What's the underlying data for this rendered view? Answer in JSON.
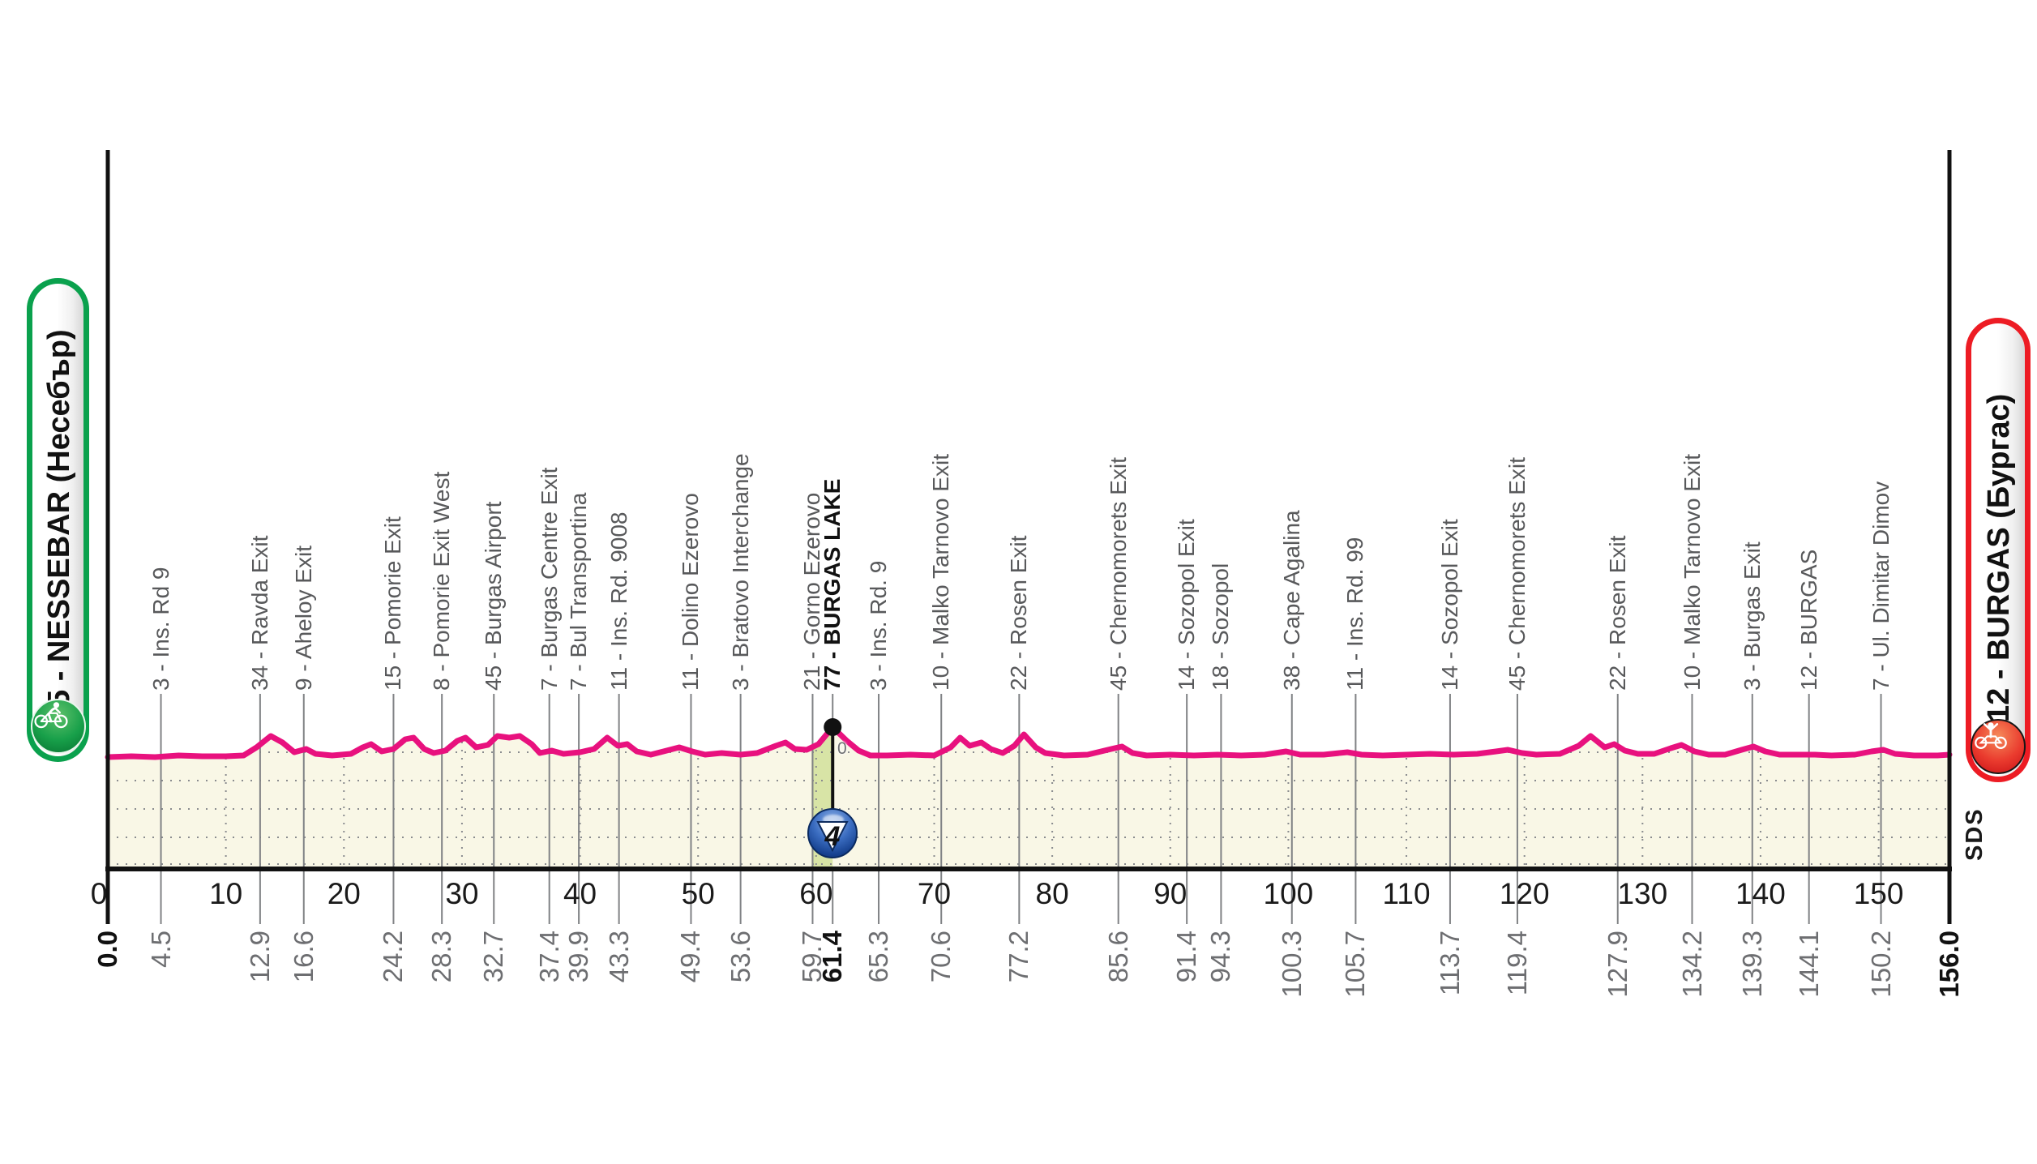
{
  "stage": {
    "start_label": "5 - NESSEBAR (Несебър)",
    "finish_label": "12 - BURGAS (Бургас)"
  },
  "sponsor_logo": "SDS",
  "sprint": {
    "ball_label": "4",
    "km": "61.4",
    "elevation_label": "0"
  },
  "colors": {
    "profile_pink": "#e8117e",
    "band_cream": "#f9f7e6",
    "green_band": "#d8e4a6",
    "grid_gray": "#8a8c8f",
    "waypoint_line": "#808285",
    "label_gray": "#58595b",
    "km_gray": "#6d6e71",
    "start_green": "#0aa14d",
    "finish_red": "#ed1c24",
    "black": "#111111"
  },
  "chart_data": {
    "type": "line",
    "xlabel_unit": "km",
    "x_max": 156,
    "x_ticks": [
      0,
      10,
      20,
      30,
      40,
      50,
      60,
      70,
      80,
      90,
      100,
      110,
      120,
      130,
      140,
      150
    ],
    "endpoints": [
      {
        "km": "0.0",
        "bold": true
      },
      {
        "km": "156.0",
        "bold": true
      }
    ],
    "sprint_km": 61.4,
    "waypoints": [
      {
        "km": "4.5",
        "label": "3 - Ins. Rd 9",
        "bold": false
      },
      {
        "km": "12.9",
        "label": "34 - Ravda Exit",
        "bold": false
      },
      {
        "km": "16.6",
        "label": "9 - Aheloy Exit",
        "bold": false
      },
      {
        "km": "24.2",
        "label": "15 - Pomorie Exit",
        "bold": false
      },
      {
        "km": "28.3",
        "label": "8 - Pomorie Exit West",
        "bold": false
      },
      {
        "km": "32.7",
        "label": "45 - Burgas Airport",
        "bold": false
      },
      {
        "km": "37.4",
        "label": "7 - Burgas Centre Exit",
        "bold": false
      },
      {
        "km": "39.9",
        "label": "7 - Bul Transportina",
        "bold": false
      },
      {
        "km": "43.3",
        "label": "11 - Ins. Rd. 9008",
        "bold": false
      },
      {
        "km": "49.4",
        "label": "11 - Dolino Ezerovo",
        "bold": false
      },
      {
        "km": "53.6",
        "label": "3 - Bratovo Interchange",
        "bold": false
      },
      {
        "km": "59.7",
        "label": "21 - Gorno Ezerovo",
        "bold": false
      },
      {
        "km": "61.4",
        "label": "77 - BURGAS LAKE",
        "bold": true
      },
      {
        "km": "65.3",
        "label": "3 - Ins. Rd. 9",
        "bold": false
      },
      {
        "km": "70.6",
        "label": "10 - Malko Tarnovo Exit",
        "bold": false
      },
      {
        "km": "77.2",
        "label": "22 - Rosen Exit",
        "bold": false
      },
      {
        "km": "85.6",
        "label": "45 - Chernomorets Exit",
        "bold": false
      },
      {
        "km": "91.4",
        "label": "14 - Sozopol Exit",
        "bold": false
      },
      {
        "km": "94.3",
        "label": "18 - Sozopol",
        "bold": false
      },
      {
        "km": "100.3",
        "label": "38 - Cape Agalina",
        "bold": false
      },
      {
        "km": "105.7",
        "label": "11 - Ins. Rd. 99",
        "bold": false
      },
      {
        "km": "113.7",
        "label": "14 - Sozopol Exit",
        "bold": false
      },
      {
        "km": "119.4",
        "label": "45 - Chernomorets Exit",
        "bold": false
      },
      {
        "km": "127.9",
        "label": "22 - Rosen Exit",
        "bold": false
      },
      {
        "km": "134.2",
        "label": "10 - Malko Tarnovo Exit",
        "bold": false
      },
      {
        "km": "139.3",
        "label": "3 - Burgas Exit",
        "bold": false
      },
      {
        "km": "144.1",
        "label": "12 - BURGAS",
        "bold": false
      },
      {
        "km": "150.2",
        "label": "7 - Ul. Dimitar Dimov",
        "bold": false
      }
    ],
    "profile_km_bump": [
      [
        0,
        0
      ],
      [
        2,
        1
      ],
      [
        4,
        0
      ],
      [
        6,
        2
      ],
      [
        8,
        1
      ],
      [
        10,
        1
      ],
      [
        11.5,
        2
      ],
      [
        12.6,
        12
      ],
      [
        13.8,
        26
      ],
      [
        14.8,
        18
      ],
      [
        15.8,
        6
      ],
      [
        16.8,
        10
      ],
      [
        17.6,
        4
      ],
      [
        19,
        2
      ],
      [
        20.6,
        4
      ],
      [
        21.6,
        12
      ],
      [
        22.3,
        16
      ],
      [
        23.2,
        7
      ],
      [
        24.2,
        10
      ],
      [
        25.2,
        22
      ],
      [
        25.9,
        24
      ],
      [
        26.8,
        10
      ],
      [
        27.6,
        5
      ],
      [
        28.6,
        8
      ],
      [
        29.6,
        20
      ],
      [
        30.3,
        24
      ],
      [
        31.2,
        12
      ],
      [
        32.2,
        15
      ],
      [
        33,
        26
      ],
      [
        34,
        24
      ],
      [
        34.9,
        26
      ],
      [
        35.9,
        16
      ],
      [
        36.6,
        5
      ],
      [
        37.6,
        8
      ],
      [
        38.6,
        4
      ],
      [
        40,
        6
      ],
      [
        41.2,
        10
      ],
      [
        42.3,
        24
      ],
      [
        43.2,
        14
      ],
      [
        44,
        16
      ],
      [
        44.8,
        7
      ],
      [
        46,
        3
      ],
      [
        47.6,
        9
      ],
      [
        48.4,
        12
      ],
      [
        49.5,
        7
      ],
      [
        50.6,
        3
      ],
      [
        52,
        5
      ],
      [
        53.6,
        3
      ],
      [
        55,
        5
      ],
      [
        56.6,
        14
      ],
      [
        57.4,
        18
      ],
      [
        58.2,
        10
      ],
      [
        59.2,
        9
      ],
      [
        60.2,
        16
      ],
      [
        61.4,
        37
      ],
      [
        62.6,
        20
      ],
      [
        63.6,
        8
      ],
      [
        64.6,
        2
      ],
      [
        66,
        2
      ],
      [
        68,
        3
      ],
      [
        70,
        2
      ],
      [
        71.4,
        12
      ],
      [
        72.2,
        24
      ],
      [
        73,
        14
      ],
      [
        74,
        18
      ],
      [
        74.8,
        10
      ],
      [
        75.8,
        5
      ],
      [
        76.8,
        14
      ],
      [
        77.6,
        28
      ],
      [
        78.6,
        12
      ],
      [
        79.4,
        5
      ],
      [
        81,
        2
      ],
      [
        83,
        3
      ],
      [
        85,
        10
      ],
      [
        85.9,
        13
      ],
      [
        86.8,
        5
      ],
      [
        88,
        2
      ],
      [
        90,
        3
      ],
      [
        92,
        2
      ],
      [
        94,
        3
      ],
      [
        96,
        2
      ],
      [
        98,
        3
      ],
      [
        99.8,
        7
      ],
      [
        101,
        3
      ],
      [
        103,
        3
      ],
      [
        105,
        6
      ],
      [
        106.2,
        3
      ],
      [
        108,
        2
      ],
      [
        110,
        3
      ],
      [
        112,
        4
      ],
      [
        114,
        3
      ],
      [
        116,
        4
      ],
      [
        117.6,
        7
      ],
      [
        118.6,
        9
      ],
      [
        119.8,
        5
      ],
      [
        121,
        3
      ],
      [
        123,
        4
      ],
      [
        124.6,
        14
      ],
      [
        125.6,
        26
      ],
      [
        126.8,
        12
      ],
      [
        127.6,
        16
      ],
      [
        128.5,
        8
      ],
      [
        129.6,
        4
      ],
      [
        131,
        4
      ],
      [
        132.4,
        11
      ],
      [
        133.3,
        15
      ],
      [
        134.4,
        7
      ],
      [
        135.6,
        3
      ],
      [
        137,
        3
      ],
      [
        138.4,
        9
      ],
      [
        139.4,
        13
      ],
      [
        140.4,
        7
      ],
      [
        141.6,
        3
      ],
      [
        143,
        3
      ],
      [
        144.6,
        3
      ],
      [
        146,
        2
      ],
      [
        148,
        3
      ],
      [
        149.4,
        7
      ],
      [
        150.4,
        9
      ],
      [
        151.4,
        4
      ],
      [
        153,
        2
      ],
      [
        155,
        2
      ],
      [
        156,
        3
      ]
    ]
  }
}
